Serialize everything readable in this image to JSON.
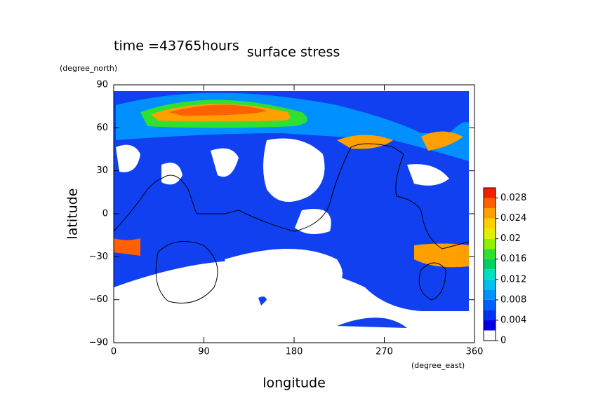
{
  "chart_data": {
    "type": "contour",
    "title": "surface stress",
    "annotation": "time =43765hours",
    "x_label": "longitude",
    "y_label": "latitude",
    "x_unit": "(degree_east)",
    "y_unit": "(degree_north)",
    "xlim": [
      0,
      360
    ],
    "xticks": [
      0,
      90,
      180,
      270,
      360
    ],
    "ylim": [
      -90,
      90
    ],
    "yticks": [
      {
        "value": -90,
        "label": "−90"
      },
      {
        "value": -60,
        "label": "−60"
      },
      {
        "value": -30,
        "label": "−30"
      },
      0,
      30,
      60,
      90
    ],
    "colorbar": {
      "clim": [
        0,
        0.03
      ],
      "ticks": [
        0,
        0.004,
        0.008,
        0.012,
        0.016,
        0.02,
        0.024,
        0.028
      ],
      "colors": [
        "#ffffff",
        "#0000e0",
        "#0030f0",
        "#0060ff",
        "#0090ff",
        "#00c0f0",
        "#00e0c0",
        "#00d060",
        "#30e030",
        "#90f000",
        "#e0f000",
        "#ffd000",
        "#ffa000",
        "#ff6000",
        "#f02000"
      ]
    }
  }
}
